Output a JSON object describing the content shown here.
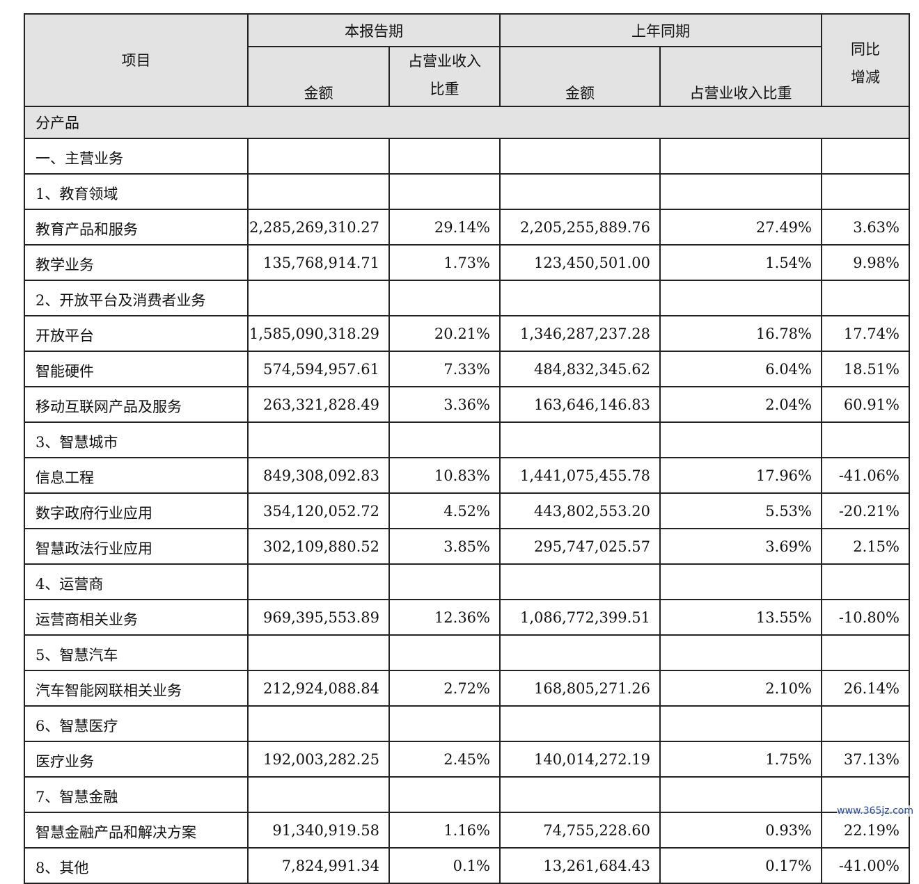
{
  "header": {
    "item": "项目",
    "current_period": "本报告期",
    "prior_period": "上年同期",
    "amount": "金额",
    "ratio_wrapped_l1": "占营业收入",
    "ratio_wrapped_l2": "比重",
    "ratio": "占营业收入比重",
    "yoy_l1": "同比",
    "yoy_l2": "增减"
  },
  "section_label": "分产品",
  "rows": [
    {
      "label": "一、主营业务",
      "cur_amount": "",
      "cur_ratio": "",
      "prev_amount": "",
      "prev_ratio": "",
      "yoy": ""
    },
    {
      "label": "1、教育领域",
      "cur_amount": "",
      "cur_ratio": "",
      "prev_amount": "",
      "prev_ratio": "",
      "yoy": ""
    },
    {
      "label": "教育产品和服务",
      "cur_amount": "2,285,269,310.27",
      "cur_ratio": "29.14%",
      "prev_amount": "2,205,255,889.76",
      "prev_ratio": "27.49%",
      "yoy": "3.63%"
    },
    {
      "label": "教学业务",
      "cur_amount": "135,768,914.71",
      "cur_ratio": "1.73%",
      "prev_amount": "123,450,501.00",
      "prev_ratio": "1.54%",
      "yoy": "9.98%"
    },
    {
      "label": "2、开放平台及消费者业务",
      "cur_amount": "",
      "cur_ratio": "",
      "prev_amount": "",
      "prev_ratio": "",
      "yoy": ""
    },
    {
      "label": "开放平台",
      "cur_amount": "1,585,090,318.29",
      "cur_ratio": "20.21%",
      "prev_amount": "1,346,287,237.28",
      "prev_ratio": "16.78%",
      "yoy": "17.74%"
    },
    {
      "label": "智能硬件",
      "cur_amount": "574,594,957.61",
      "cur_ratio": "7.33%",
      "prev_amount": "484,832,345.62",
      "prev_ratio": "6.04%",
      "yoy": "18.51%"
    },
    {
      "label": "移动互联网产品及服务",
      "cur_amount": "263,321,828.49",
      "cur_ratio": "3.36%",
      "prev_amount": "163,646,146.83",
      "prev_ratio": "2.04%",
      "yoy": "60.91%"
    },
    {
      "label": "3、智慧城市",
      "cur_amount": "",
      "cur_ratio": "",
      "prev_amount": "",
      "prev_ratio": "",
      "yoy": ""
    },
    {
      "label": "信息工程",
      "cur_amount": "849,308,092.83",
      "cur_ratio": "10.83%",
      "prev_amount": "1,441,075,455.78",
      "prev_ratio": "17.96%",
      "yoy": "-41.06%"
    },
    {
      "label": "数字政府行业应用",
      "cur_amount": "354,120,052.72",
      "cur_ratio": "4.52%",
      "prev_amount": "443,802,553.20",
      "prev_ratio": "5.53%",
      "yoy": "-20.21%"
    },
    {
      "label": "智慧政法行业应用",
      "cur_amount": "302,109,880.52",
      "cur_ratio": "3.85%",
      "prev_amount": "295,747,025.57",
      "prev_ratio": "3.69%",
      "yoy": "2.15%"
    },
    {
      "label": "4、运营商",
      "cur_amount": "",
      "cur_ratio": "",
      "prev_amount": "",
      "prev_ratio": "",
      "yoy": ""
    },
    {
      "label": "运营商相关业务",
      "cur_amount": "969,395,553.89",
      "cur_ratio": "12.36%",
      "prev_amount": "1,086,772,399.51",
      "prev_ratio": "13.55%",
      "yoy": "-10.80%"
    },
    {
      "label": "5、智慧汽车",
      "cur_amount": "",
      "cur_ratio": "",
      "prev_amount": "",
      "prev_ratio": "",
      "yoy": ""
    },
    {
      "label": "汽车智能网联相关业务",
      "cur_amount": "212,924,088.84",
      "cur_ratio": "2.72%",
      "prev_amount": "168,805,271.26",
      "prev_ratio": "2.10%",
      "yoy": "26.14%"
    },
    {
      "label": "6、智慧医疗",
      "cur_amount": "",
      "cur_ratio": "",
      "prev_amount": "",
      "prev_ratio": "",
      "yoy": ""
    },
    {
      "label": "医疗业务",
      "cur_amount": "192,003,282.25",
      "cur_ratio": "2.45%",
      "prev_amount": "140,014,272.19",
      "prev_ratio": "1.75%",
      "yoy": "37.13%"
    },
    {
      "label": "7、智慧金融",
      "cur_amount": "",
      "cur_ratio": "",
      "prev_amount": "",
      "prev_ratio": "",
      "yoy": ""
    },
    {
      "label": "智慧金融产品和解决方案",
      "cur_amount": "91,340,919.58",
      "cur_ratio": "1.16%",
      "prev_amount": "74,755,228.60",
      "prev_ratio": "0.93%",
      "yoy": "22.19%"
    },
    {
      "label": "8、其他",
      "cur_amount": "7,824,991.34",
      "cur_ratio": "0.1%",
      "prev_amount": "13,261,684.43",
      "prev_ratio": "0.17%",
      "yoy": "-41.00%"
    }
  ],
  "watermark": "www.365jz.com"
}
